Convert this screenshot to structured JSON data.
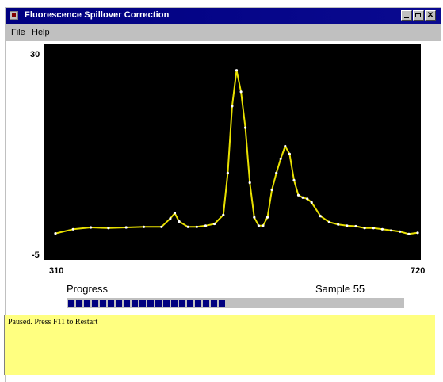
{
  "window": {
    "title": "Fluorescence Spillover Correction",
    "buttons": {
      "minimize": "minimize-icon",
      "maximize": "maximize-icon",
      "close": "close-icon"
    }
  },
  "menu": {
    "items": [
      {
        "label": "File"
      },
      {
        "label": "Help"
      }
    ]
  },
  "chart_data": {
    "type": "line",
    "title": "",
    "xlabel": "",
    "ylabel": "",
    "xlim": [
      310,
      720
    ],
    "ylim": [
      -5,
      30
    ],
    "x_tick_labels": [
      "310",
      "720"
    ],
    "y_tick_labels": [
      "30",
      "-5"
    ],
    "grid": false,
    "series": [
      {
        "color": "#e8e000",
        "x": [
          310,
          330,
          350,
          370,
          390,
          410,
          430,
          440,
          445,
          450,
          460,
          470,
          480,
          490,
          500,
          505,
          510,
          515,
          520,
          525,
          530,
          535,
          540,
          545,
          550,
          555,
          560,
          565,
          570,
          575,
          580,
          585,
          590,
          595,
          600,
          610,
          620,
          630,
          640,
          650,
          660,
          670,
          680,
          690,
          700,
          710,
          720
        ],
        "y": [
          -1.1,
          -0.4,
          -0.1,
          -0.2,
          -0.1,
          0.0,
          0.0,
          1.4,
          2.3,
          0.9,
          0.0,
          0.0,
          0.2,
          0.5,
          2.0,
          9.0,
          20.2,
          26.2,
          22.6,
          16.6,
          7.4,
          1.6,
          0.2,
          0.2,
          1.6,
          6.2,
          9.0,
          11.4,
          13.5,
          12.2,
          7.8,
          5.3,
          4.9,
          4.7,
          4.1,
          1.8,
          0.8,
          0.4,
          0.2,
          0.1,
          -0.2,
          -0.2,
          -0.4,
          -0.6,
          -0.8,
          -1.2,
          -1.0
        ]
      }
    ]
  },
  "progress": {
    "label": "Progress",
    "sample_text": "Sample 55",
    "fraction": 0.47,
    "fill_color": "#000080",
    "track_color": "#c0c0c0"
  },
  "status": {
    "text": "Paused.  Press F11 to Restart",
    "background": "#ffff80"
  }
}
